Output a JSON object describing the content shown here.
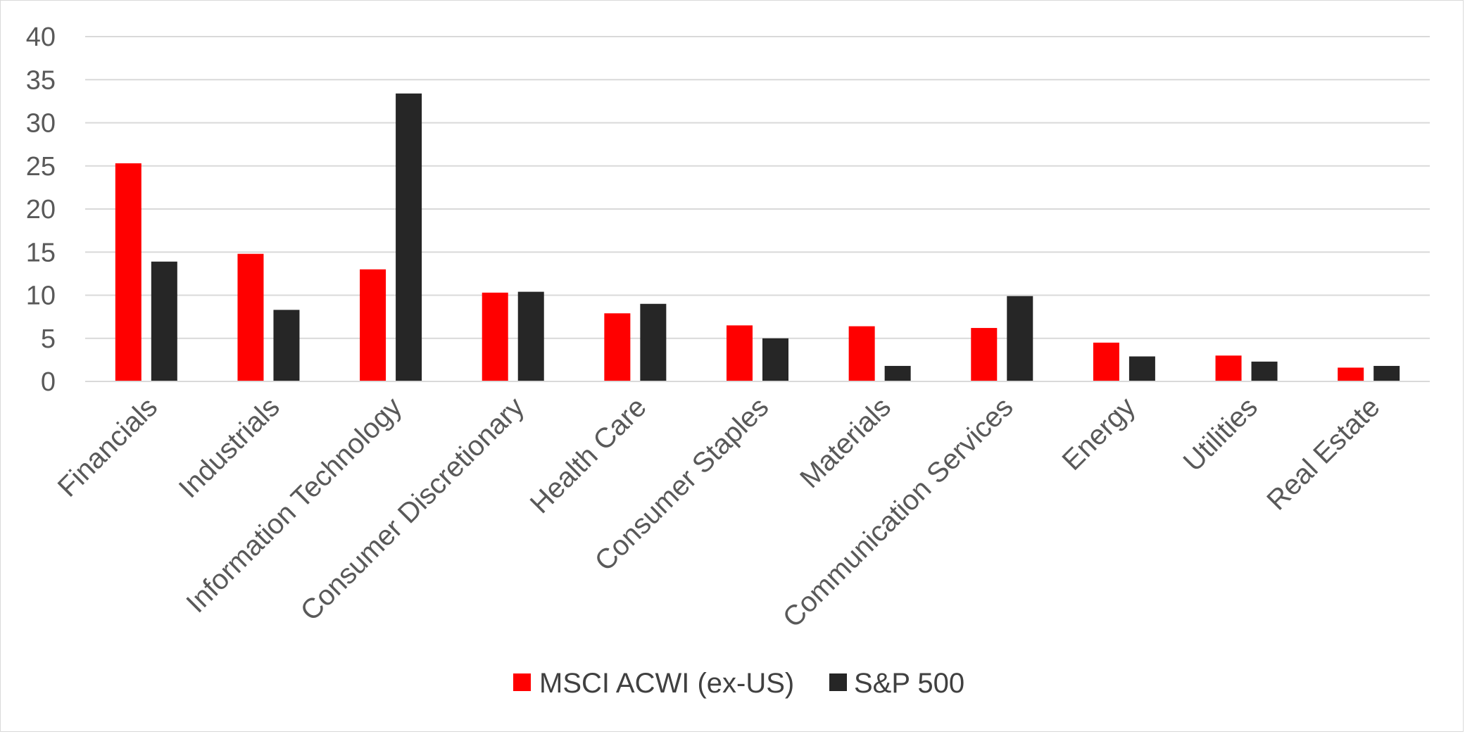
{
  "chart_data": {
    "type": "bar",
    "title": "",
    "xlabel": "",
    "ylabel": "",
    "ylim": [
      0,
      40
    ],
    "yticks": [
      0,
      5,
      10,
      15,
      20,
      25,
      30,
      35,
      40
    ],
    "grid": true,
    "legend_position": "bottom",
    "categories": [
      "Financials",
      "Industrials",
      "Information Technology",
      "Consumer Discretionary",
      "Health Care",
      "Consumer Staples",
      "Materials",
      "Communication Services",
      "Energy",
      "Utilities",
      "Real Estate"
    ],
    "series": [
      {
        "name": "MSCI ACWI (ex-US)",
        "color": "#ff0000",
        "values": [
          25.3,
          14.8,
          13.0,
          10.3,
          7.9,
          6.5,
          6.4,
          6.2,
          4.5,
          3.0,
          1.6
        ]
      },
      {
        "name": "S&P 500",
        "color": "#262626",
        "values": [
          13.9,
          8.3,
          33.4,
          10.4,
          9.0,
          5.0,
          1.8,
          9.9,
          2.9,
          2.3,
          1.8
        ]
      }
    ]
  }
}
